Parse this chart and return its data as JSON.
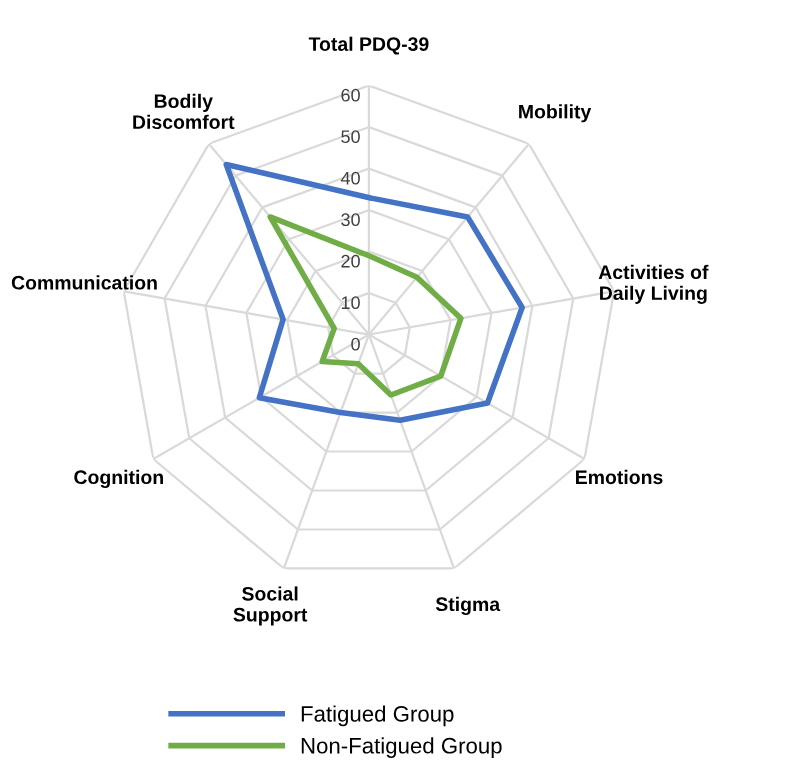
{
  "chart_data": {
    "type": "radar",
    "categories": [
      "Total PDQ-39",
      "Mobility",
      "Activities of\nDaily Living",
      "Emotions",
      "Stigma",
      "Social\nSupport",
      "Cognition",
      "Communication",
      "Bodily\nDiscomfort"
    ],
    "series": [
      {
        "name": "Fatigued Group",
        "color": "#4472c4",
        "values": [
          33,
          37,
          37.5,
          33,
          22,
          20,
          30.5,
          21,
          53.5
        ]
      },
      {
        "name": "Non-Fatigued Group",
        "color": "#70ad47",
        "values": [
          19,
          18,
          22.5,
          20,
          15.5,
          7.5,
          13,
          8.5,
          37
        ]
      }
    ],
    "ylim": [
      0,
      60
    ],
    "yticks": [
      0,
      10,
      20,
      30,
      40,
      50,
      60
    ],
    "grid": true,
    "legend": "bottom",
    "marker": "none",
    "line_style": "solid"
  }
}
